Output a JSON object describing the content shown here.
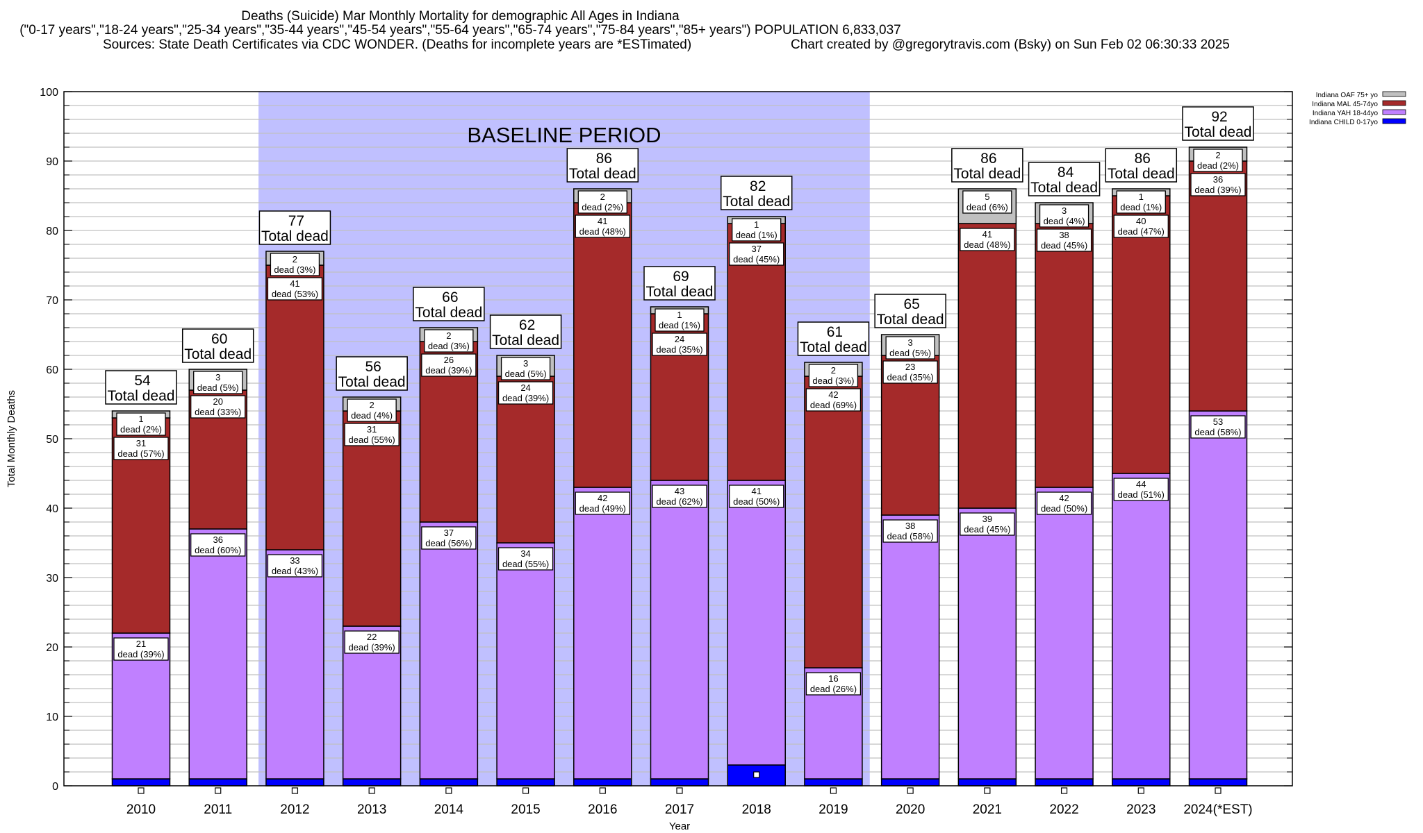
{
  "chart_data": {
    "type": "bar",
    "stacked": true,
    "title": "Deaths (Suicide) Mar Monthly Mortality for demographic All Ages in Indiana",
    "subtitle": "(\"0-17 years\",\"18-24 years\",\"25-34 years\",\"35-44 years\",\"45-54 years\",\"55-64 years\",\"65-74 years\",\"75-84 years\",\"85+ years\") POPULATION 6,833,037",
    "source_note": "Sources: State Death Certificates via CDC WONDER. (Deaths for incomplete years are *ESTimated)",
    "credit": "Chart created by @gregorytravis.com (Bsky) on Sun Feb 02 06:30:33 2025",
    "xlabel": "Year",
    "ylabel": "Total Monthly Deaths",
    "ylim": [
      0,
      100
    ],
    "yticks": [
      0,
      10,
      20,
      30,
      40,
      50,
      60,
      70,
      80,
      90,
      100
    ],
    "grid": true,
    "legend_position": "top-right",
    "annotation": {
      "text": "BASELINE PERIOD",
      "start": "2012",
      "end": "2019"
    },
    "total_label_suffix": "Total dead",
    "segment_label_word": "dead",
    "categories": [
      "2010",
      "2011",
      "2012",
      "2013",
      "2014",
      "2015",
      "2016",
      "2017",
      "2018",
      "2019",
      "2020",
      "2021",
      "2022",
      "2023",
      "2024(*EST)"
    ],
    "totals": [
      54,
      60,
      77,
      56,
      66,
      62,
      86,
      69,
      82,
      61,
      65,
      86,
      84,
      86,
      92
    ],
    "series": [
      {
        "name": "Indiana CHILD 0-17yo",
        "color": "#0000ff",
        "values": [
          1,
          1,
          1,
          1,
          1,
          1,
          1,
          1,
          3,
          1,
          1,
          1,
          1,
          1,
          1
        ],
        "pct": [
          null,
          null,
          null,
          null,
          null,
          null,
          null,
          null,
          null,
          null,
          null,
          null,
          null,
          null,
          null
        ]
      },
      {
        "name": "Indiana YAH 18-44yo",
        "color": "#c080ff",
        "values": [
          21,
          36,
          33,
          22,
          37,
          34,
          42,
          43,
          41,
          16,
          38,
          39,
          42,
          44,
          53
        ],
        "pct": [
          39,
          60,
          43,
          39,
          56,
          55,
          49,
          62,
          50,
          26,
          58,
          45,
          50,
          51,
          58
        ]
      },
      {
        "name": "Indiana MAL 45-74yo",
        "color": "#a52a2a",
        "values": [
          31,
          20,
          41,
          31,
          26,
          24,
          41,
          24,
          37,
          42,
          23,
          41,
          38,
          40,
          36
        ],
        "pct": [
          57,
          33,
          53,
          55,
          39,
          39,
          48,
          35,
          45,
          69,
          35,
          48,
          45,
          47,
          39
        ]
      },
      {
        "name": "Indiana OAF 75+ yo",
        "color": "#c0c0c0",
        "values": [
          1,
          3,
          2,
          2,
          2,
          3,
          2,
          1,
          1,
          2,
          3,
          5,
          3,
          1,
          2
        ],
        "pct": [
          2,
          5,
          3,
          4,
          3,
          5,
          2,
          1,
          1,
          3,
          5,
          6,
          4,
          1,
          2
        ]
      }
    ],
    "legend_order": [
      "Indiana OAF 75+ yo",
      "Indiana MAL 45-74yo",
      "Indiana YAH 18-44yo",
      "Indiana CHILD 0-17yo"
    ],
    "colors": {
      "baseline_band": "#c0c0ff",
      "grid": "#c0c0c0",
      "frame": "#000000"
    }
  }
}
